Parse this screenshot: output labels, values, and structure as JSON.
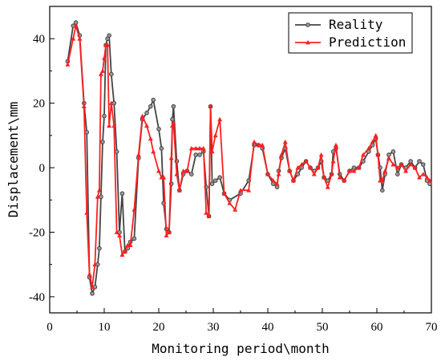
{
  "chart_data": {
    "type": "line",
    "xlabel": "Monitoring period\\month",
    "ylabel": "Displacement\\mm",
    "xlim": [
      0,
      70
    ],
    "ylim": [
      -45,
      50
    ],
    "xticks": [
      0,
      10,
      20,
      30,
      40,
      50,
      60,
      70
    ],
    "yticks": [
      -40,
      -20,
      0,
      20,
      40
    ],
    "grid": false,
    "legend_position": "top-right",
    "series": [
      {
        "name": "Reality",
        "color": "#444444",
        "marker": "circle",
        "points": [
          [
            3.3,
            33
          ],
          [
            4.3,
            44
          ],
          [
            4.8,
            45
          ],
          [
            5.5,
            41
          ],
          [
            6.3,
            20
          ],
          [
            6.8,
            11
          ],
          [
            7.3,
            -34
          ],
          [
            7.8,
            -39
          ],
          [
            8.3,
            -37
          ],
          [
            8.8,
            -30
          ],
          [
            9.1,
            -25
          ],
          [
            9.4,
            -9
          ],
          [
            9.7,
            8
          ],
          [
            10.0,
            16
          ],
          [
            10.3,
            38
          ],
          [
            10.6,
            40
          ],
          [
            10.9,
            41
          ],
          [
            11.3,
            29
          ],
          [
            11.8,
            20
          ],
          [
            12.3,
            5
          ],
          [
            12.8,
            -20
          ],
          [
            13.3,
            -8
          ],
          [
            13.8,
            -26
          ],
          [
            14.3,
            -25
          ],
          [
            14.8,
            -23
          ],
          [
            15.5,
            -22
          ],
          [
            16.3,
            3
          ],
          [
            17.0,
            15
          ],
          [
            17.8,
            17
          ],
          [
            18.5,
            19
          ],
          [
            19.0,
            21
          ],
          [
            20.0,
            12
          ],
          [
            20.5,
            6
          ],
          [
            20.9,
            -11
          ],
          [
            21.4,
            -19
          ],
          [
            21.9,
            -20
          ],
          [
            22.3,
            -5
          ],
          [
            22.5,
            15
          ],
          [
            22.7,
            19
          ],
          [
            23.3,
            2
          ],
          [
            23.8,
            -7
          ],
          [
            24.5,
            -2
          ],
          [
            25.2,
            -1
          ],
          [
            26.0,
            -2
          ],
          [
            26.8,
            4
          ],
          [
            27.5,
            4
          ],
          [
            28.2,
            5
          ],
          [
            28.7,
            -6
          ],
          [
            29.2,
            -15
          ],
          [
            29.5,
            19
          ],
          [
            29.8,
            -5
          ],
          [
            30.4,
            -4
          ],
          [
            31.2,
            -3
          ],
          [
            32.0,
            -8
          ],
          [
            33.0,
            -10
          ],
          [
            35.0,
            -8
          ],
          [
            36.5,
            -4
          ],
          [
            37.5,
            7
          ],
          [
            38.3,
            7
          ],
          [
            39.0,
            6
          ],
          [
            40.0,
            -2
          ],
          [
            41.0,
            -5
          ],
          [
            41.7,
            -6
          ],
          [
            42.0,
            -1
          ],
          [
            42.5,
            3
          ],
          [
            43.2,
            6
          ],
          [
            44.0,
            -1
          ],
          [
            44.7,
            -4
          ],
          [
            45.5,
            -2
          ],
          [
            46.2,
            0
          ],
          [
            47.0,
            2
          ],
          [
            47.8,
            0
          ],
          [
            48.5,
            -1
          ],
          [
            49.2,
            0
          ],
          [
            49.8,
            2
          ],
          [
            50.3,
            -3
          ],
          [
            51.0,
            -4
          ],
          [
            51.7,
            -2
          ],
          [
            52.0,
            5
          ],
          [
            52.5,
            6
          ],
          [
            53.2,
            -2
          ],
          [
            54.0,
            -4
          ],
          [
            55.0,
            -1
          ],
          [
            55.8,
            0
          ],
          [
            56.7,
            0
          ],
          [
            57.5,
            2
          ],
          [
            58.5,
            5
          ],
          [
            59.2,
            7
          ],
          [
            59.8,
            9
          ],
          [
            60.2,
            4
          ],
          [
            60.6,
            0
          ],
          [
            61.0,
            -7
          ],
          [
            61.5,
            -2
          ],
          [
            62.2,
            4
          ],
          [
            63.0,
            5
          ],
          [
            63.8,
            -2
          ],
          [
            64.5,
            1
          ],
          [
            65.3,
            0
          ],
          [
            66.2,
            2
          ],
          [
            67.0,
            0
          ],
          [
            67.8,
            2
          ],
          [
            68.5,
            1
          ],
          [
            69.2,
            -4
          ],
          [
            69.7,
            -5
          ]
        ]
      },
      {
        "name": "Prediction",
        "color": "#ff2020",
        "marker": "triangle",
        "points": [
          [
            3.3,
            32
          ],
          [
            4.3,
            40
          ],
          [
            4.8,
            44
          ],
          [
            5.5,
            40
          ],
          [
            6.3,
            19
          ],
          [
            6.8,
            -14
          ],
          [
            7.3,
            -33
          ],
          [
            7.8,
            -37
          ],
          [
            8.3,
            -30
          ],
          [
            8.8,
            -9
          ],
          [
            9.1,
            -7
          ],
          [
            9.4,
            29
          ],
          [
            9.7,
            30
          ],
          [
            10.0,
            34
          ],
          [
            10.3,
            38
          ],
          [
            10.6,
            38
          ],
          [
            10.9,
            13
          ],
          [
            11.3,
            20
          ],
          [
            11.8,
            13
          ],
          [
            12.3,
            -20
          ],
          [
            12.8,
            -21
          ],
          [
            13.3,
            -27
          ],
          [
            13.8,
            -26
          ],
          [
            14.3,
            -24
          ],
          [
            14.8,
            -24
          ],
          [
            15.5,
            -13
          ],
          [
            16.3,
            4
          ],
          [
            17.0,
            16
          ],
          [
            17.8,
            13
          ],
          [
            18.5,
            9
          ],
          [
            19.0,
            5
          ],
          [
            20.0,
            -1
          ],
          [
            20.5,
            -3
          ],
          [
            20.9,
            -3
          ],
          [
            21.4,
            -21
          ],
          [
            21.9,
            -20
          ],
          [
            22.3,
            3
          ],
          [
            22.5,
            13
          ],
          [
            22.7,
            14
          ],
          [
            23.3,
            -2
          ],
          [
            23.8,
            -7
          ],
          [
            24.5,
            -1
          ],
          [
            25.2,
            -1
          ],
          [
            26.0,
            6
          ],
          [
            26.8,
            6
          ],
          [
            27.5,
            6
          ],
          [
            28.2,
            6
          ],
          [
            28.7,
            -14
          ],
          [
            29.2,
            -15
          ],
          [
            29.5,
            19
          ],
          [
            29.8,
            5
          ],
          [
            30.4,
            10
          ],
          [
            31.2,
            15
          ],
          [
            32.0,
            -8
          ],
          [
            33.0,
            -11
          ],
          [
            34.0,
            -13
          ],
          [
            35.0,
            -7
          ],
          [
            36.5,
            -7
          ],
          [
            37.5,
            8
          ],
          [
            38.3,
            7
          ],
          [
            39.0,
            7
          ],
          [
            40.0,
            -2
          ],
          [
            41.0,
            -4
          ],
          [
            41.7,
            -5
          ],
          [
            42.0,
            -2
          ],
          [
            42.5,
            4
          ],
          [
            43.2,
            8
          ],
          [
            44.0,
            -1
          ],
          [
            44.7,
            -4
          ],
          [
            45.5,
            0
          ],
          [
            46.2,
            1
          ],
          [
            47.0,
            2
          ],
          [
            47.8,
            0
          ],
          [
            48.5,
            -2
          ],
          [
            49.2,
            0
          ],
          [
            49.8,
            4
          ],
          [
            50.3,
            -3
          ],
          [
            51.0,
            -6
          ],
          [
            51.7,
            -2
          ],
          [
            52.0,
            2
          ],
          [
            52.5,
            7
          ],
          [
            53.2,
            -3
          ],
          [
            54.0,
            -4
          ],
          [
            55.0,
            -1
          ],
          [
            55.8,
            -1
          ],
          [
            56.7,
            0
          ],
          [
            57.5,
            4
          ],
          [
            58.5,
            6
          ],
          [
            59.2,
            8
          ],
          [
            59.8,
            10
          ],
          [
            60.2,
            4
          ],
          [
            60.6,
            -4
          ],
          [
            61.0,
            -4
          ],
          [
            61.5,
            -1
          ],
          [
            62.2,
            3
          ],
          [
            63.0,
            1
          ],
          [
            63.8,
            0
          ],
          [
            64.5,
            1
          ],
          [
            65.3,
            -1
          ],
          [
            66.2,
            1
          ],
          [
            67.0,
            0
          ],
          [
            67.8,
            -3
          ],
          [
            68.5,
            -2
          ],
          [
            69.2,
            -3
          ],
          [
            69.7,
            -4
          ]
        ]
      }
    ]
  }
}
